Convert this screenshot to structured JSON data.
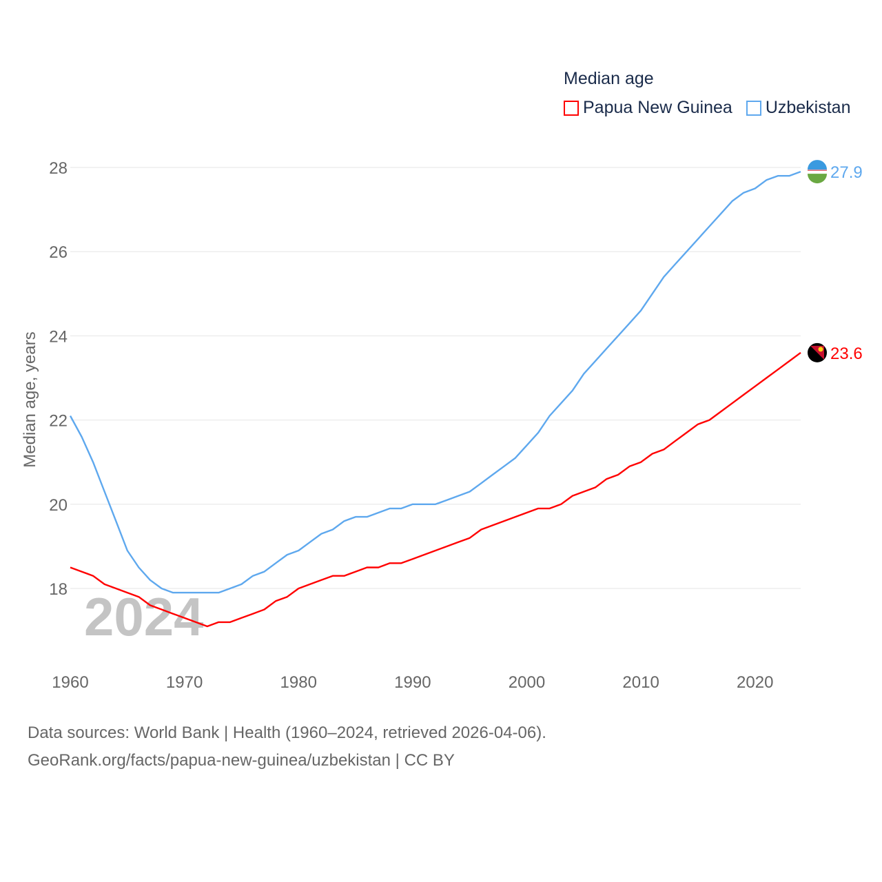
{
  "chart_data": {
    "type": "line",
    "title": "Median age",
    "ylabel": "Median age, years",
    "xlabel": "",
    "ylim": [
      16.6,
      28.2
    ],
    "xlim": [
      1960,
      2024
    ],
    "yticks": [
      18,
      20,
      22,
      24,
      26,
      28
    ],
    "xticks": [
      1960,
      1970,
      1980,
      1990,
      2000,
      2010,
      2020
    ],
    "grid": true,
    "legend_position": "top-right",
    "watermark": "2024",
    "x": [
      1960,
      1961,
      1962,
      1963,
      1964,
      1965,
      1966,
      1967,
      1968,
      1969,
      1970,
      1971,
      1972,
      1973,
      1974,
      1975,
      1976,
      1977,
      1978,
      1979,
      1980,
      1981,
      1982,
      1983,
      1984,
      1985,
      1986,
      1987,
      1988,
      1989,
      1990,
      1991,
      1992,
      1993,
      1994,
      1995,
      1996,
      1997,
      1998,
      1999,
      2000,
      2001,
      2002,
      2003,
      2004,
      2005,
      2006,
      2007,
      2008,
      2009,
      2010,
      2011,
      2012,
      2013,
      2014,
      2015,
      2016,
      2017,
      2018,
      2019,
      2020,
      2021,
      2022,
      2023,
      2024
    ],
    "series": [
      {
        "name": "Papua New Guinea",
        "color": "#ff0000",
        "end_label": "23.6",
        "values": [
          18.5,
          18.4,
          18.3,
          18.1,
          18.0,
          17.9,
          17.8,
          17.6,
          17.5,
          17.4,
          17.3,
          17.2,
          17.1,
          17.2,
          17.2,
          17.3,
          17.4,
          17.5,
          17.7,
          17.8,
          18.0,
          18.1,
          18.2,
          18.3,
          18.3,
          18.4,
          18.5,
          18.5,
          18.6,
          18.6,
          18.7,
          18.8,
          18.9,
          19.0,
          19.1,
          19.2,
          19.4,
          19.5,
          19.6,
          19.7,
          19.8,
          19.9,
          19.9,
          20.0,
          20.2,
          20.3,
          20.4,
          20.6,
          20.7,
          20.9,
          21.0,
          21.2,
          21.3,
          21.5,
          21.7,
          21.9,
          22.0,
          22.2,
          22.4,
          22.6,
          22.8,
          23.0,
          23.2,
          23.4,
          23.6
        ]
      },
      {
        "name": "Uzbekistan",
        "color": "#5ea8ee",
        "end_label": "27.9",
        "values": [
          22.1,
          21.6,
          21.0,
          20.3,
          19.6,
          18.9,
          18.5,
          18.2,
          18.0,
          17.9,
          17.9,
          17.9,
          17.9,
          17.9,
          18.0,
          18.1,
          18.3,
          18.4,
          18.6,
          18.8,
          18.9,
          19.1,
          19.3,
          19.4,
          19.6,
          19.7,
          19.7,
          19.8,
          19.9,
          19.9,
          20.0,
          20.0,
          20.0,
          20.1,
          20.2,
          20.3,
          20.5,
          20.7,
          20.9,
          21.1,
          21.4,
          21.7,
          22.1,
          22.4,
          22.7,
          23.1,
          23.4,
          23.7,
          24.0,
          24.3,
          24.6,
          25.0,
          25.4,
          25.7,
          26.0,
          26.3,
          26.6,
          26.9,
          27.2,
          27.4,
          27.5,
          27.7,
          27.8,
          27.8,
          27.9
        ]
      }
    ]
  },
  "footer": {
    "line1": "Data sources: World Bank | Health (1960–2024, retrieved 2026-04-06).",
    "line2": "GeoRank.org/facts/papua-new-guinea/uzbekistan | CC BY"
  }
}
